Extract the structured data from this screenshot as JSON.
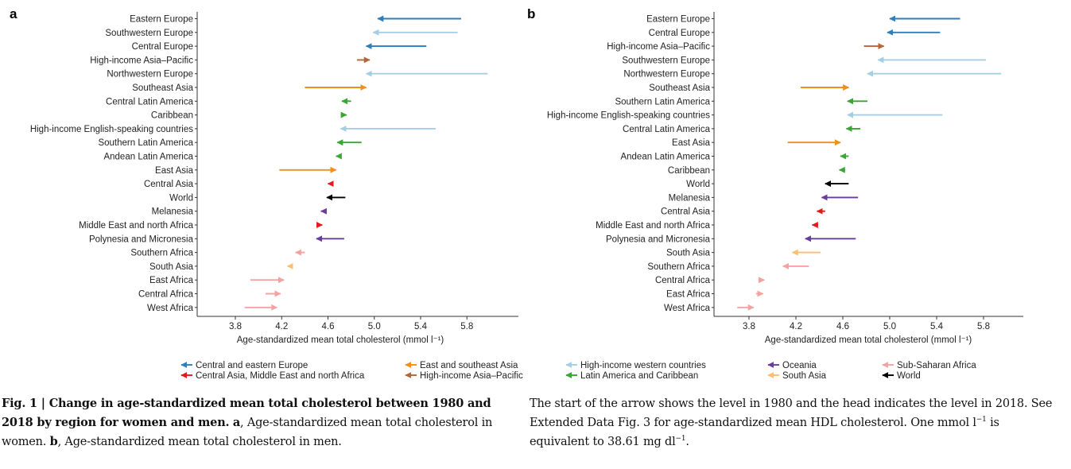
{
  "panels": [
    {
      "letter": "a",
      "categories": [
        "Eastern Europe",
        "Southwestern Europe",
        "Central Europe",
        "High-income Asia–Pacific",
        "Northwestern Europe",
        "Southeast Asia",
        "Central Latin America",
        "Caribbean",
        "High-income English-speaking countries",
        "Southern Latin America",
        "Andean Latin America",
        "East Asia",
        "Central Asia",
        "World",
        "Melanesia",
        "Middle East and north Africa",
        "Polynesia and Micronesia",
        "Southern Africa",
        "South Asia",
        "East Africa",
        "Central Africa",
        "West Africa"
      ]
    },
    {
      "letter": "b",
      "categories": [
        "Eastern Europe",
        "Central Europe",
        "High-income Asia–Pacific",
        "Southwestern Europe",
        "Northwestern Europe",
        "Southeast Asia",
        "Southern Latin America",
        "High-income English-speaking countries",
        "Central Latin America",
        "East Asia",
        "Andean Latin America",
        "Caribbean",
        "World",
        "Melanesia",
        "Central Asia",
        "Middle East and north Africa",
        "Polynesia and Micronesia",
        "South Asia",
        "Southern Africa",
        "Central Africa",
        "East Africa",
        "West Africa"
      ]
    }
  ],
  "chart_data": [
    {
      "type": "arrow",
      "panel": "a",
      "title": "",
      "xlabel": "Age-standardized mean total cholesterol (mmol l⁻¹)",
      "ylabel": "",
      "xlim": [
        3.4,
        6.2
      ],
      "xticks": [
        "3.8",
        "4.2",
        "4.6",
        "5.0",
        "5.4",
        "5.8"
      ],
      "arrows": [
        {
          "region": "Eastern Europe",
          "start": 5.75,
          "end": 5.03,
          "color": "#2e7ebc"
        },
        {
          "region": "Southwestern Europe",
          "start": 5.72,
          "end": 4.99,
          "color": "#a6cee3"
        },
        {
          "region": "Central Europe",
          "start": 5.45,
          "end": 4.93,
          "color": "#2e7ebc"
        },
        {
          "region": "High-income Asia–Pacific",
          "start": 4.85,
          "end": 4.96,
          "color": "#b5663a"
        },
        {
          "region": "Northwestern Europe",
          "start": 5.98,
          "end": 4.93,
          "color": "#a6cee3"
        },
        {
          "region": "Southeast Asia",
          "start": 4.4,
          "end": 4.93,
          "color": "#f28e1c"
        },
        {
          "region": "Central Latin America",
          "start": 4.8,
          "end": 4.72,
          "color": "#3aa635"
        },
        {
          "region": "Caribbean",
          "start": 4.71,
          "end": 4.76,
          "color": "#3aa635"
        },
        {
          "region": "High-income English-speaking countries",
          "start": 5.53,
          "end": 4.71,
          "color": "#a6cee3"
        },
        {
          "region": "Southern Latin America",
          "start": 4.89,
          "end": 4.68,
          "color": "#3aa635"
        },
        {
          "region": "Andean Latin America",
          "start": 4.71,
          "end": 4.67,
          "color": "#3aa635"
        },
        {
          "region": "East Asia",
          "start": 4.18,
          "end": 4.67,
          "color": "#f28e1c"
        },
        {
          "region": "Central Asia",
          "start": 4.63,
          "end": 4.6,
          "color": "#e31a1c"
        },
        {
          "region": "World",
          "start": 4.75,
          "end": 4.59,
          "color": "#000000"
        },
        {
          "region": "Melanesia",
          "start": 4.58,
          "end": 4.54,
          "color": "#6a3d9a"
        },
        {
          "region": "Middle East and north Africa",
          "start": 4.51,
          "end": 4.55,
          "color": "#e31a1c"
        },
        {
          "region": "Polynesia and Micronesia",
          "start": 4.74,
          "end": 4.5,
          "color": "#6a3d9a"
        },
        {
          "region": "Southern Africa",
          "start": 4.4,
          "end": 4.32,
          "color": "#f4a3a3"
        },
        {
          "region": "South Asia",
          "start": 4.28,
          "end": 4.25,
          "color": "#fdbf6f"
        },
        {
          "region": "East Africa",
          "start": 3.93,
          "end": 4.22,
          "color": "#f4a3a3"
        },
        {
          "region": "Central Africa",
          "start": 4.06,
          "end": 4.19,
          "color": "#f4a3a3"
        },
        {
          "region": "West Africa",
          "start": 3.88,
          "end": 4.16,
          "color": "#f4a3a3"
        }
      ]
    },
    {
      "type": "arrow",
      "panel": "b",
      "title": "",
      "xlabel": "Age-standardized mean total cholesterol (mmol l⁻¹)",
      "ylabel": "",
      "xlim": [
        3.5,
        6.1
      ],
      "xticks": [
        "3.8",
        "4.2",
        "4.6",
        "5.0",
        "5.4",
        "5.8"
      ],
      "arrows": [
        {
          "region": "Eastern Europe",
          "start": 5.6,
          "end": 5.0,
          "color": "#2e7ebc"
        },
        {
          "region": "Central Europe",
          "start": 5.43,
          "end": 4.98,
          "color": "#2e7ebc"
        },
        {
          "region": "High-income Asia–Pacific",
          "start": 4.78,
          "end": 4.95,
          "color": "#b5663a"
        },
        {
          "region": "Southwestern Europe",
          "start": 5.82,
          "end": 4.9,
          "color": "#a6cee3"
        },
        {
          "region": "Northwestern Europe",
          "start": 5.95,
          "end": 4.81,
          "color": "#a6cee3"
        },
        {
          "region": "Southeast Asia",
          "start": 4.24,
          "end": 4.65,
          "color": "#f28e1c"
        },
        {
          "region": "Southern Latin America",
          "start": 4.81,
          "end": 4.64,
          "color": "#3aa635"
        },
        {
          "region": "High-income English-speaking countries",
          "start": 5.45,
          "end": 4.64,
          "color": "#a6cee3"
        },
        {
          "region": "Central Latin America",
          "start": 4.75,
          "end": 4.63,
          "color": "#3aa635"
        },
        {
          "region": "East Asia",
          "start": 4.13,
          "end": 4.58,
          "color": "#f28e1c"
        },
        {
          "region": "Andean Latin America",
          "start": 4.65,
          "end": 4.58,
          "color": "#3aa635"
        },
        {
          "region": "Caribbean",
          "start": 4.62,
          "end": 4.57,
          "color": "#3aa635"
        },
        {
          "region": "World",
          "start": 4.65,
          "end": 4.45,
          "color": "#000000"
        },
        {
          "region": "Melanesia",
          "start": 4.73,
          "end": 4.42,
          "color": "#6a3d9a"
        },
        {
          "region": "Central Asia",
          "start": 4.45,
          "end": 4.38,
          "color": "#e31a1c"
        },
        {
          "region": "Middle East and north Africa",
          "start": 4.39,
          "end": 4.34,
          "color": "#e31a1c"
        },
        {
          "region": "Polynesia and Micronesia",
          "start": 4.71,
          "end": 4.28,
          "color": "#6a3d9a"
        },
        {
          "region": "South Asia",
          "start": 4.41,
          "end": 4.17,
          "color": "#fdbf6f"
        },
        {
          "region": "Southern Africa",
          "start": 4.31,
          "end": 4.09,
          "color": "#f4a3a3"
        },
        {
          "region": "Central Africa",
          "start": 3.89,
          "end": 3.93,
          "color": "#f4a3a3"
        },
        {
          "region": "East Africa",
          "start": 3.86,
          "end": 3.92,
          "color": "#f4a3a3"
        },
        {
          "region": "West Africa",
          "start": 3.7,
          "end": 3.84,
          "color": "#f4a3a3"
        }
      ]
    }
  ],
  "legend": [
    {
      "label": "Central and eastern Europe",
      "color": "#2e7ebc"
    },
    {
      "label": "Central Asia, Middle East and north Africa",
      "color": "#e31a1c"
    },
    {
      "label": "East and southeast Asia",
      "color": "#f28e1c"
    },
    {
      "label": "High-income Asia–Pacific",
      "color": "#b5663a"
    },
    {
      "label": "High-income western countries",
      "color": "#a6cee3"
    },
    {
      "label": "Latin America and Caribbean",
      "color": "#3aa635"
    },
    {
      "label": "Oceania",
      "color": "#6a3d9a"
    },
    {
      "label": "South Asia",
      "color": "#fdbf6f"
    },
    {
      "label": "Sub-Saharan Africa",
      "color": "#f4a3a3"
    },
    {
      "label": "World",
      "color": "#000000"
    }
  ],
  "caption": {
    "bold": "Fig. 1 | Change in age-standardized mean total cholesterol between 1980 and 2018 by region for women and men.",
    "part_a_letter": "a",
    "part_a_text": ", Age-standardized mean total cholesterol in women.",
    "part_b_letter": "b",
    "part_b_text": ", Age-standardized mean total cholesterol in men.",
    "right_1": "The start of the arrow shows the level in 1980 and the head indicates the level in 2018. See Extended Data Fig. 3 for age-standardized mean HDL cholesterol. One mmol l",
    "right_sup1": "−1",
    "right_2": " is equivalent to 38.61 mg dl",
    "right_sup2": "−1",
    "right_3": "."
  }
}
